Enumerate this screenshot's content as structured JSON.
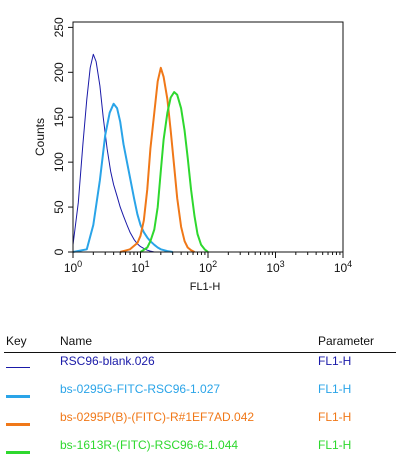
{
  "chart_data": {
    "type": "line",
    "ylabel": "Counts",
    "xlabel": "FL1-H",
    "x_scale": "log",
    "xlim": [
      1,
      10000
    ],
    "ylim": [
      0,
      256
    ],
    "y_ticks": [
      0,
      50,
      100,
      150,
      200,
      250
    ],
    "x_ticks": [
      {
        "base": "10",
        "exp": "0"
      },
      {
        "base": "10",
        "exp": "1"
      },
      {
        "base": "10",
        "exp": "2"
      },
      {
        "base": "10",
        "exp": "3"
      },
      {
        "base": "10",
        "exp": "4"
      }
    ],
    "series": [
      {
        "name": "RSC96-blank.026",
        "color": "#1a1aa8",
        "line_width": 1,
        "x": [
          1.0,
          1.2,
          1.4,
          1.6,
          1.8,
          2.0,
          2.2,
          2.5,
          2.8,
          3.2,
          3.6,
          4.0,
          4.5,
          5.0,
          5.6,
          6.3,
          7.0,
          8.0,
          9.0,
          10,
          11.2,
          12.6,
          14,
          16,
          18,
          20
        ],
        "y": [
          8,
          55,
          120,
          170,
          205,
          220,
          212,
          185,
          150,
          115,
          90,
          75,
          62,
          50,
          40,
          30,
          22,
          14,
          9,
          6,
          4,
          2,
          1,
          0,
          0,
          0
        ]
      },
      {
        "name": "bs-0295G-FITC-RSC96-1.027",
        "color": "#2aa4e8",
        "line_width": 2,
        "x": [
          1.0,
          1.6,
          2.0,
          2.5,
          3.0,
          3.5,
          4.0,
          4.5,
          5.0,
          5.6,
          6.3,
          7.1,
          8.0,
          9.0,
          10,
          11.2,
          12.6,
          14,
          16,
          18,
          20,
          25,
          30
        ],
        "y": [
          0,
          3,
          30,
          80,
          130,
          155,
          165,
          160,
          145,
          120,
          100,
          80,
          60,
          42,
          30,
          22,
          16,
          12,
          8,
          5,
          3,
          1,
          0
        ]
      },
      {
        "name": "bs-0295P(B)-(FITC)-R#1EF7AD.042",
        "color": "#f07818",
        "line_width": 2,
        "x": [
          5,
          7,
          9,
          10,
          11.2,
          12.6,
          14,
          16,
          18,
          20,
          22,
          25,
          28,
          31.6,
          35,
          40,
          45,
          50,
          56,
          63
        ],
        "y": [
          0,
          3,
          10,
          18,
          35,
          70,
          115,
          155,
          190,
          205,
          195,
          170,
          135,
          95,
          60,
          28,
          12,
          5,
          2,
          0
        ]
      },
      {
        "name": "bs-1613R-(FITC)-RSC96-6-1.044",
        "color": "#2ed82e",
        "line_width": 2,
        "x": [
          10,
          12.6,
          14,
          16,
          18,
          20,
          22,
          25,
          28,
          31.6,
          35,
          40,
          45,
          50,
          56,
          63,
          70,
          79,
          89,
          100
        ],
        "y": [
          0,
          5,
          12,
          25,
          50,
          90,
          125,
          155,
          172,
          178,
          175,
          160,
          135,
          105,
          70,
          40,
          20,
          8,
          3,
          0
        ]
      }
    ],
    "grid": false,
    "legend": "below"
  },
  "legend": {
    "key_header": "Key",
    "name_header": "Name",
    "parameter_header": "Parameter",
    "rows": [
      {
        "name": "RSC96-blank.026",
        "parameter": "FL1-H",
        "color": "#1a1aa8"
      },
      {
        "name": "bs-0295G-FITC-RSC96-1.027",
        "parameter": "FL1-H",
        "color": "#2aa4e8"
      },
      {
        "name": "bs-0295P(B)-(FITC)-R#1EF7AD.042",
        "parameter": "FL1-H",
        "color": "#f07818"
      },
      {
        "name": "bs-1613R-(FITC)-RSC96-6-1.044",
        "parameter": "FL1-H",
        "color": "#2ed82e"
      }
    ]
  }
}
